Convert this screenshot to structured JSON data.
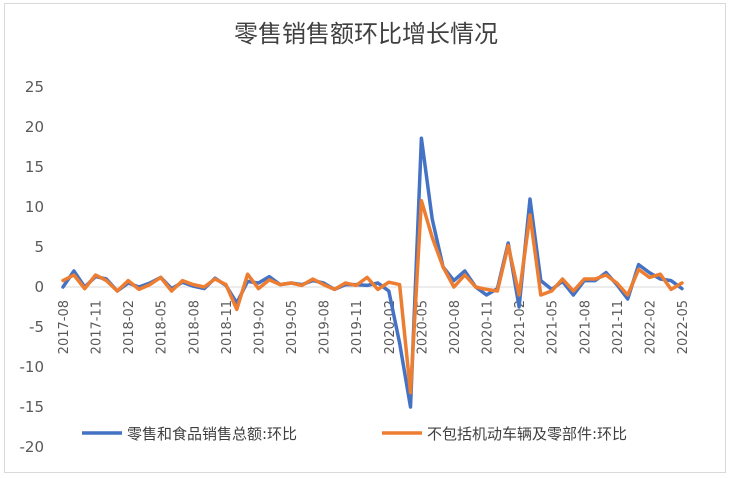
{
  "chart_data": {
    "type": "line",
    "title": "零售销售额环比增长情况",
    "xlabel": "",
    "ylabel": "",
    "ylim": [
      -20,
      25
    ],
    "yticks": [
      25,
      20,
      15,
      10,
      5,
      0,
      -5,
      -10,
      -15,
      -20
    ],
    "grid": false,
    "legend_position": "bottom",
    "x": [
      "2017-08",
      "2017-09",
      "2017-10",
      "2017-11",
      "2017-12",
      "2018-01",
      "2018-02",
      "2018-03",
      "2018-04",
      "2018-05",
      "2018-06",
      "2018-07",
      "2018-08",
      "2018-09",
      "2018-10",
      "2018-11",
      "2018-12",
      "2019-01",
      "2019-02",
      "2019-03",
      "2019-04",
      "2019-05",
      "2019-06",
      "2019-07",
      "2019-08",
      "2019-09",
      "2019-10",
      "2019-11",
      "2019-12",
      "2020-01",
      "2020-02",
      "2020-03",
      "2020-04",
      "2020-05",
      "2020-06",
      "2020-07",
      "2020-08",
      "2020-09",
      "2020-10",
      "2020-11",
      "2020-12",
      "2021-01",
      "2021-02",
      "2021-03",
      "2021-04",
      "2021-05",
      "2021-06",
      "2021-07",
      "2021-08",
      "2021-09",
      "2021-10",
      "2021-11",
      "2021-12",
      "2022-01",
      "2022-02",
      "2022-03",
      "2022-04",
      "2022-05"
    ],
    "x_tick_labels": [
      "2017-08",
      "2017-11",
      "2018-02",
      "2018-05",
      "2018-08",
      "2018-11",
      "2019-02",
      "2019-05",
      "2019-08",
      "2019-11",
      "2020-02",
      "2020-05",
      "2020-08",
      "2020-11",
      "2021-02",
      "2021-05",
      "2021-08",
      "2021-11",
      "2022-02",
      "2022-05"
    ],
    "series": [
      {
        "name": "零售和食品销售总额:环比",
        "color": "#4472C4",
        "values": [
          0.0,
          2.0,
          0.0,
          1.3,
          1.0,
          -0.5,
          0.5,
          0.0,
          0.5,
          1.2,
          -0.2,
          0.6,
          0.1,
          -0.2,
          1.1,
          0.2,
          -2.0,
          0.7,
          0.5,
          1.3,
          0.3,
          0.5,
          0.3,
          0.8,
          0.5,
          -0.3,
          0.3,
          0.3,
          0.2,
          0.5,
          -0.5,
          -7.0,
          -15.0,
          18.6,
          8.5,
          2.5,
          0.8,
          2.0,
          0.0,
          -1.0,
          -0.2,
          5.5,
          -2.5,
          11.0,
          0.8,
          -0.3,
          0.7,
          -1.0,
          0.8,
          0.8,
          1.8,
          0.3,
          -1.5,
          2.8,
          1.8,
          1.0,
          0.8,
          -0.2
        ]
      },
      {
        "name": "不包括机动车辆及零部件:环比",
        "color": "#ED7D31",
        "values": [
          0.8,
          1.5,
          -0.2,
          1.5,
          0.8,
          -0.5,
          0.8,
          -0.3,
          0.3,
          1.2,
          -0.5,
          0.8,
          0.3,
          0.0,
          1.0,
          0.3,
          -2.8,
          1.6,
          -0.2,
          0.9,
          0.3,
          0.5,
          0.2,
          1.0,
          0.3,
          -0.3,
          0.5,
          0.2,
          1.2,
          -0.3,
          0.6,
          0.3,
          -13.2,
          10.8,
          6.2,
          2.5,
          0.0,
          1.5,
          0.0,
          -0.3,
          -0.5,
          5.2,
          -1.0,
          9.0,
          -1.0,
          -0.5,
          1.0,
          -0.5,
          1.0,
          1.0,
          1.5,
          0.5,
          -1.0,
          2.2,
          1.2,
          1.6,
          -0.3,
          0.5
        ]
      }
    ]
  }
}
